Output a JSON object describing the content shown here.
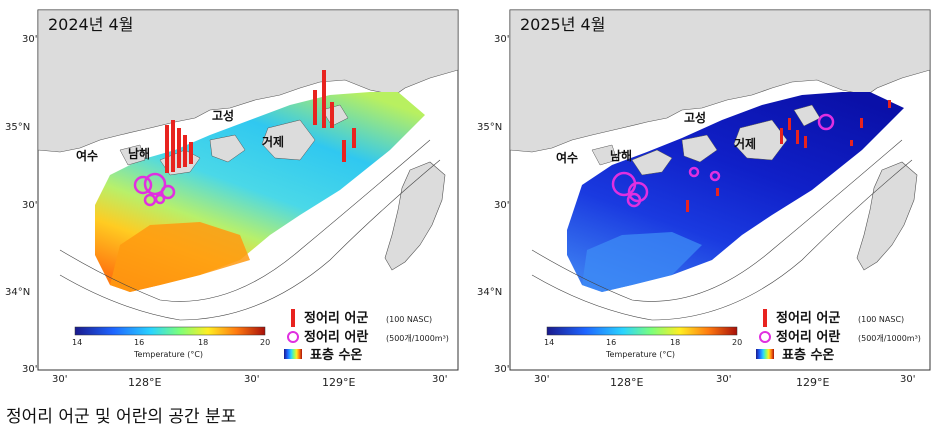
{
  "panels": [
    {
      "title": "2024년 4월",
      "theme": "warm",
      "place_labels": [
        "여수",
        "남해",
        "고성",
        "거제"
      ],
      "lat_ticks": [
        "30'",
        "35°N",
        "30'",
        "34°N",
        "30'"
      ],
      "lon_ticks": [
        "30'",
        "128°E",
        "30'",
        "129°E",
        "30'"
      ],
      "legend": {
        "school_label": "정어리 어군",
        "school_unit": "(100 NASC)",
        "egg_label": "정어리 어란",
        "egg_unit": "(500개/1000m³)",
        "sst_label": "표층 수온",
        "colorbar_ticks": [
          "14",
          "16",
          "18",
          "20"
        ],
        "colorbar_title": "Temperature (°C)"
      }
    },
    {
      "title": "2025년 4월",
      "theme": "cold",
      "place_labels": [
        "여수",
        "남해",
        "고성",
        "거제"
      ],
      "lat_ticks": [
        "30'",
        "35°N",
        "30'",
        "34°N",
        "30'"
      ],
      "lon_ticks": [
        "30'",
        "128°E",
        "30'",
        "129°E",
        "30'"
      ],
      "legend": {
        "school_label": "정어리 어군",
        "school_unit": "(100 NASC)",
        "egg_label": "정어리 어란",
        "egg_unit": "(500개/1000m³)",
        "sst_label": "표층 수온",
        "colorbar_ticks": [
          "14",
          "16",
          "18",
          "20"
        ],
        "colorbar_title": "Temperature (°C)"
      }
    }
  ],
  "caption": "정어리 어군 및 어란의 공간 분포",
  "colors": {
    "land": "#dcdcdc",
    "school_bar": "#e8231f",
    "egg_circle": "#e030e0"
  }
}
